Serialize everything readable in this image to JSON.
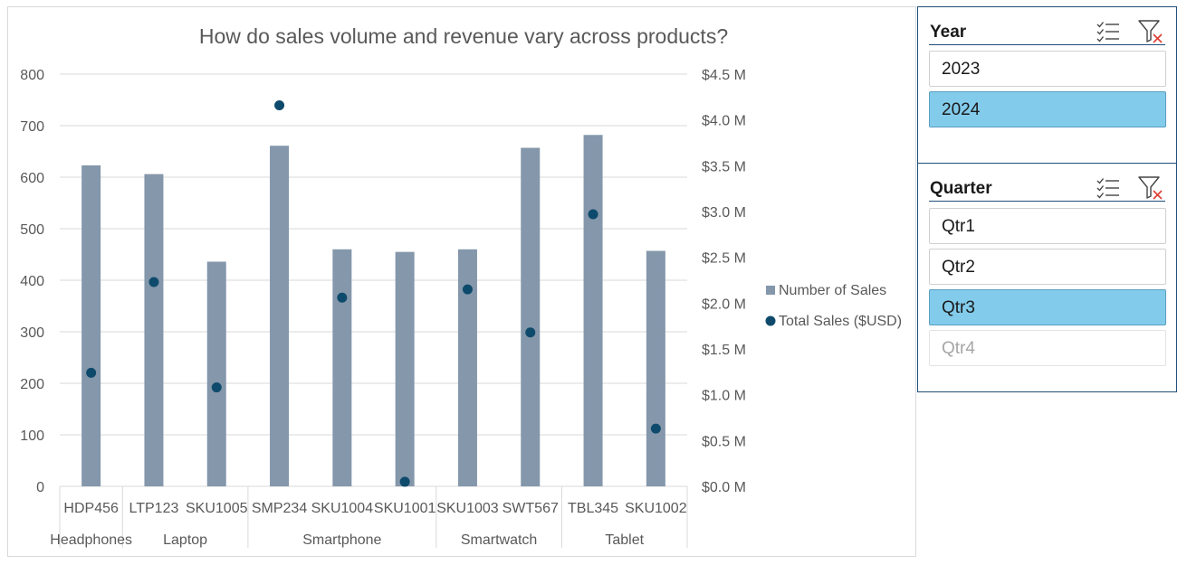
{
  "chart_data": {
    "type": "bar+scatter",
    "title": "How do sales volume and revenue vary across products?",
    "categories": [
      "HDP456",
      "LTP123",
      "SKU1005",
      "SMP234",
      "SKU1004",
      "SKU1001",
      "SKU1003",
      "SWT567",
      "TBL345",
      "SKU1002"
    ],
    "groups": [
      {
        "name": "Headphones",
        "members": [
          "HDP456"
        ]
      },
      {
        "name": "Laptop",
        "members": [
          "LTP123",
          "SKU1005"
        ]
      },
      {
        "name": "Smartphone",
        "members": [
          "SMP234",
          "SKU1004",
          "SKU1001"
        ]
      },
      {
        "name": "Smartwatch",
        "members": [
          "SKU1003",
          "SWT567"
        ]
      },
      {
        "name": "Tablet",
        "members": [
          "TBL345",
          "SKU1002"
        ]
      }
    ],
    "series": [
      {
        "name": "Number of Sales",
        "type": "bar",
        "axis": "left",
        "color": "#8497ab",
        "values": [
          623,
          606,
          436,
          661,
          460,
          455,
          460,
          657,
          682,
          457
        ]
      },
      {
        "name": "Total Sales ($USD)",
        "type": "scatter",
        "axis": "right",
        "color": "#0e4a6b",
        "values": [
          1.24,
          2.23,
          1.08,
          4.16,
          2.06,
          0.05,
          2.15,
          1.68,
          2.97,
          0.63
        ]
      }
    ],
    "y_left": {
      "min": 0,
      "max": 800,
      "step": 100,
      "ticks": [
        "0",
        "100",
        "200",
        "300",
        "400",
        "500",
        "600",
        "700",
        "800"
      ]
    },
    "y_right": {
      "min": 0,
      "max": 4.5,
      "step": 0.5,
      "ticks": [
        "$0.0 M",
        "$0.5 M",
        "$1.0 M",
        "$1.5 M",
        "$2.0 M",
        "$2.5 M",
        "$3.0 M",
        "$3.5 M",
        "$4.0 M",
        "$4.5 M"
      ]
    },
    "grid": true,
    "legend_position": "right"
  },
  "slicers": {
    "year": {
      "title": "Year",
      "items": [
        {
          "label": "2023",
          "state": "normal"
        },
        {
          "label": "2024",
          "state": "selected"
        }
      ]
    },
    "quarter": {
      "title": "Quarter",
      "items": [
        {
          "label": "Qtr1",
          "state": "normal"
        },
        {
          "label": "Qtr2",
          "state": "normal"
        },
        {
          "label": "Qtr3",
          "state": "selected"
        },
        {
          "label": "Qtr4",
          "state": "nodata"
        }
      ]
    }
  },
  "icons": {
    "multi_select": "multi-select-icon",
    "clear_filter": "clear-filter-icon"
  }
}
